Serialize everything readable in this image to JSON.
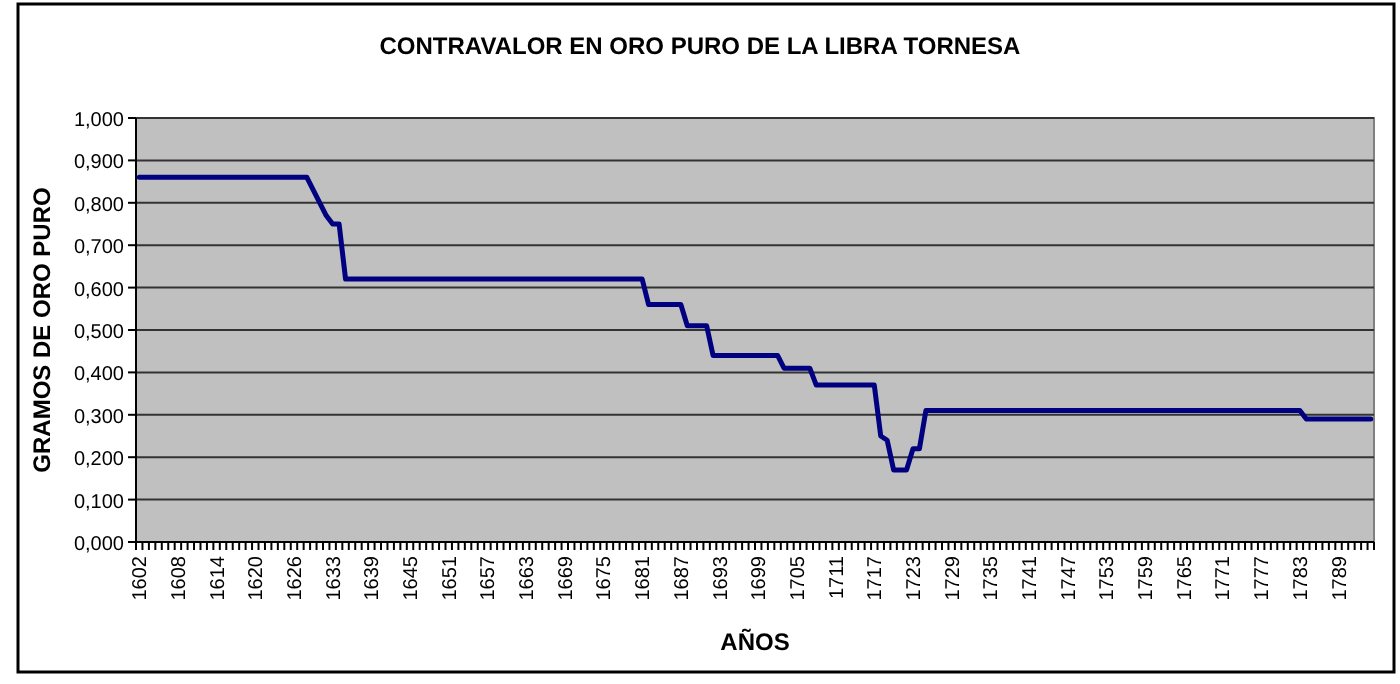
{
  "chart_data": {
    "type": "line",
    "title": "CONTRAVALOR EN ORO PURO DE LA LIBRA TORNESA",
    "xlabel": "AÑOS",
    "ylabel": "GRAMOS DE ORO PURO",
    "categories": [
      "1602",
      null,
      null,
      null,
      null,
      null,
      "1608",
      null,
      null,
      null,
      null,
      null,
      "1614",
      null,
      null,
      null,
      null,
      null,
      "1620",
      null,
      null,
      null,
      null,
      null,
      "1626",
      null,
      null,
      null,
      null,
      null,
      "1633",
      null,
      null,
      null,
      null,
      null,
      "1639",
      null,
      null,
      null,
      null,
      null,
      "1645",
      null,
      null,
      null,
      null,
      null,
      "1651",
      null,
      null,
      null,
      null,
      null,
      "1657",
      null,
      null,
      null,
      null,
      null,
      "1663",
      null,
      null,
      null,
      null,
      null,
      "1669",
      null,
      null,
      null,
      null,
      null,
      "1675",
      null,
      null,
      null,
      null,
      null,
      "1681",
      null,
      null,
      null,
      null,
      null,
      "1687",
      null,
      null,
      null,
      null,
      null,
      "1693",
      null,
      null,
      null,
      null,
      null,
      "1699",
      null,
      null,
      null,
      null,
      null,
      "1705",
      null,
      null,
      null,
      null,
      null,
      "1711",
      null,
      null,
      null,
      null,
      null,
      "1717",
      null,
      null,
      null,
      null,
      null,
      "1723",
      null,
      null,
      null,
      null,
      null,
      "1729",
      null,
      null,
      null,
      null,
      null,
      "1735",
      null,
      null,
      null,
      null,
      null,
      "1741",
      null,
      null,
      null,
      null,
      null,
      "1747",
      null,
      null,
      null,
      null,
      null,
      "1753",
      null,
      null,
      null,
      null,
      null,
      "1759",
      null,
      null,
      null,
      null,
      null,
      "1765",
      null,
      null,
      null,
      null,
      null,
      "1771",
      null,
      null,
      null,
      null,
      null,
      "1777",
      null,
      null,
      null,
      null,
      null,
      "1783",
      null,
      null,
      null,
      null,
      null,
      "1789",
      null,
      null,
      null,
      null,
      null
    ],
    "series": [
      {
        "color": "#000080",
        "values": [
          0.86,
          0.86,
          0.86,
          0.86,
          0.86,
          0.86,
          0.86,
          0.86,
          0.86,
          0.86,
          0.86,
          0.86,
          0.86,
          0.86,
          0.86,
          0.86,
          0.86,
          0.86,
          0.86,
          0.86,
          0.86,
          0.86,
          0.86,
          0.86,
          0.86,
          0.86,
          0.86,
          0.83,
          0.8,
          0.77,
          0.75,
          0.75,
          0.62,
          0.62,
          0.62,
          0.62,
          0.62,
          0.62,
          0.62,
          0.62,
          0.62,
          0.62,
          0.62,
          0.62,
          0.62,
          0.62,
          0.62,
          0.62,
          0.62,
          0.62,
          0.62,
          0.62,
          0.62,
          0.62,
          0.62,
          0.62,
          0.62,
          0.62,
          0.62,
          0.62,
          0.62,
          0.62,
          0.62,
          0.62,
          0.62,
          0.62,
          0.62,
          0.62,
          0.62,
          0.62,
          0.62,
          0.62,
          0.62,
          0.62,
          0.62,
          0.62,
          0.62,
          0.62,
          0.62,
          0.56,
          0.56,
          0.56,
          0.56,
          0.56,
          0.56,
          0.51,
          0.51,
          0.51,
          0.51,
          0.44,
          0.44,
          0.44,
          0.44,
          0.44,
          0.44,
          0.44,
          0.44,
          0.44,
          0.44,
          0.44,
          0.41,
          0.41,
          0.41,
          0.41,
          0.41,
          0.37,
          0.37,
          0.37,
          0.37,
          0.37,
          0.37,
          0.37,
          0.37,
          0.37,
          0.37,
          0.25,
          0.24,
          0.17,
          0.17,
          0.17,
          0.22,
          0.22,
          0.31,
          0.31,
          0.31,
          0.31,
          0.31,
          0.31,
          0.31,
          0.31,
          0.31,
          0.31,
          0.31,
          0.31,
          0.31,
          0.31,
          0.31,
          0.31,
          0.31,
          0.31,
          0.31,
          0.31,
          0.31,
          0.31,
          0.31,
          0.31,
          0.31,
          0.31,
          0.31,
          0.31,
          0.31,
          0.31,
          0.31,
          0.31,
          0.31,
          0.31,
          0.31,
          0.31,
          0.31,
          0.31,
          0.31,
          0.31,
          0.31,
          0.31,
          0.31,
          0.31,
          0.31,
          0.31,
          0.31,
          0.31,
          0.31,
          0.31,
          0.31,
          0.31,
          0.31,
          0.31,
          0.31,
          0.31,
          0.31,
          0.31,
          0.31,
          0.29,
          0.29,
          0.29,
          0.29,
          0.29,
          0.29,
          0.29,
          0.29,
          0.29,
          0.29,
          0.29
        ]
      }
    ],
    "ylim": [
      0,
      1
    ],
    "yticks": [
      {
        "value": 0,
        "label": "0,000"
      },
      {
        "value": 0.1,
        "label": "0,100"
      },
      {
        "value": 0.2,
        "label": "0,200"
      },
      {
        "value": 0.3,
        "label": "0,300"
      },
      {
        "value": 0.4,
        "label": "0,400"
      },
      {
        "value": 0.5,
        "label": "0,500"
      },
      {
        "value": 0.6,
        "label": "0,600"
      },
      {
        "value": 0.7,
        "label": "0,700"
      },
      {
        "value": 0.8,
        "label": "0,800"
      },
      {
        "value": 0.9,
        "label": "0,900"
      },
      {
        "value": 1,
        "label": "1,000"
      }
    ],
    "grid": "y",
    "marker": "none",
    "line_style": "solid"
  }
}
